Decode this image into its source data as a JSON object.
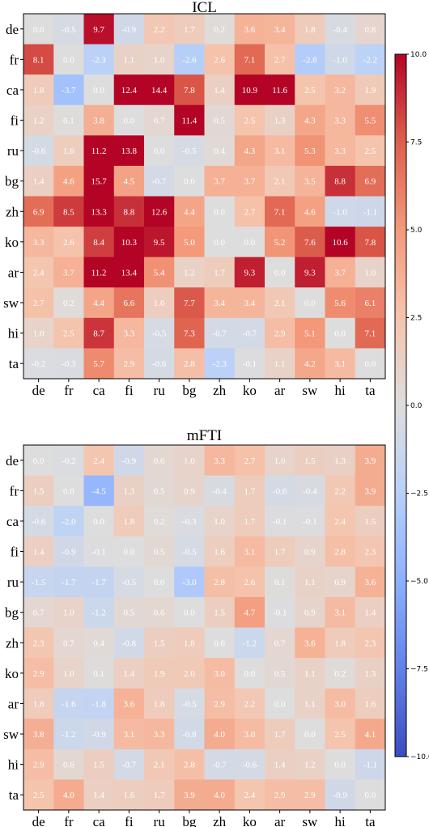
{
  "chart_data": [
    {
      "type": "heatmap",
      "title": "ICL",
      "xlabels": [
        "de",
        "fr",
        "ca",
        "fi",
        "ru",
        "bg",
        "zh",
        "ko",
        "ar",
        "sw",
        "hi",
        "ta"
      ],
      "ylabels": [
        "de",
        "fr",
        "ca",
        "fi",
        "ru",
        "bg",
        "zh",
        "ko",
        "ar",
        "sw",
        "hi",
        "ta"
      ],
      "values": [
        [
          0.0,
          -0.5,
          9.7,
          -0.9,
          2.2,
          1.7,
          0.2,
          3.6,
          3.4,
          1.8,
          -0.4,
          0.8
        ],
        [
          8.1,
          0.0,
          -2.3,
          1.1,
          1.0,
          -2.6,
          2.6,
          7.1,
          2.7,
          -2.8,
          -1.0,
          -2.2
        ],
        [
          1.8,
          -3.7,
          0.0,
          12.4,
          14.4,
          7.8,
          1.4,
          10.9,
          11.6,
          2.5,
          3.2,
          1.9
        ],
        [
          1.2,
          0.1,
          3.8,
          0.0,
          0.7,
          11.4,
          0.5,
          2.5,
          1.3,
          4.3,
          3.3,
          5.5
        ],
        [
          -0.6,
          1.6,
          11.2,
          13.8,
          0.0,
          -0.5,
          0.4,
          4.3,
          3.1,
          5.3,
          3.3,
          2.5
        ],
        [
          1.4,
          4.6,
          15.7,
          4.5,
          -0.7,
          0.0,
          3.7,
          3.7,
          2.1,
          3.5,
          8.8,
          6.9
        ],
        [
          6.9,
          8.5,
          13.3,
          8.8,
          12.6,
          4.4,
          0.0,
          2.7,
          7.1,
          4.6,
          -1.0,
          -1.1
        ],
        [
          3.3,
          2.6,
          8.4,
          10.3,
          9.5,
          5.0,
          -0.0,
          0.0,
          5.2,
          7.6,
          10.6,
          7.8
        ],
        [
          2.4,
          3.7,
          11.2,
          13.4,
          5.4,
          1.2,
          1.7,
          9.3,
          0.0,
          9.3,
          3.7,
          1.0
        ],
        [
          2.7,
          0.2,
          4.4,
          6.6,
          1.6,
          7.7,
          3.4,
          3.4,
          2.1,
          0.0,
          5.6,
          6.1
        ],
        [
          1.0,
          2.5,
          8.7,
          3.3,
          -0.5,
          7.3,
          -0.7,
          -0.7,
          2.9,
          5.1,
          0.0,
          7.1
        ],
        [
          -0.2,
          -0.3,
          5.7,
          2.9,
          -0.6,
          2.8,
          -2.3,
          -0.1,
          1.1,
          4.2,
          3.1,
          0.0
        ]
      ]
    },
    {
      "type": "heatmap",
      "title": "mFTI",
      "xlabels": [
        "de",
        "fr",
        "ca",
        "fi",
        "ru",
        "bg",
        "zh",
        "ko",
        "ar",
        "sw",
        "hi",
        "ta"
      ],
      "ylabels": [
        "de",
        "fr",
        "ca",
        "fi",
        "ru",
        "bg",
        "zh",
        "ko",
        "ar",
        "sw",
        "hi",
        "ta"
      ],
      "values": [
        [
          0.0,
          -0.2,
          2.4,
          -0.9,
          0.6,
          1.0,
          3.3,
          2.7,
          1.0,
          1.5,
          1.3,
          3.9
        ],
        [
          1.5,
          0.0,
          -4.5,
          1.3,
          0.5,
          0.9,
          -0.4,
          1.7,
          -0.6,
          -0.4,
          2.2,
          3.9
        ],
        [
          -0.6,
          -2.0,
          0.0,
          1.8,
          0.2,
          -0.3,
          1.0,
          1.7,
          -0.1,
          -0.1,
          2.4,
          1.5
        ],
        [
          1.4,
          -0.9,
          -0.1,
          0.0,
          0.5,
          -0.5,
          1.6,
          3.1,
          1.7,
          0.9,
          2.8,
          2.3
        ],
        [
          -1.5,
          -1.7,
          -1.7,
          -0.5,
          0.0,
          -3.0,
          2.8,
          2.6,
          0.1,
          1.1,
          0.9,
          3.6
        ],
        [
          0.7,
          1.0,
          -1.2,
          0.5,
          0.6,
          0.0,
          1.5,
          4.7,
          -0.1,
          0.9,
          3.1,
          1.4
        ],
        [
          2.3,
          0.7,
          0.4,
          -0.8,
          1.5,
          1.8,
          0.0,
          -1.2,
          0.7,
          3.6,
          1.8,
          2.3
        ],
        [
          2.9,
          1.0,
          0.1,
          1.4,
          1.9,
          2.0,
          3.0,
          0.0,
          0.5,
          1.1,
          0.2,
          1.3
        ],
        [
          1.8,
          -1.6,
          -1.8,
          3.6,
          1.8,
          -0.5,
          2.9,
          2.2,
          0.0,
          1.1,
          3.0,
          1.6
        ],
        [
          3.8,
          -1.2,
          -0.9,
          3.1,
          3.3,
          -0.8,
          4.0,
          3.0,
          1.7,
          0.0,
          2.5,
          4.1
        ],
        [
          2.9,
          0.6,
          1.5,
          -0.7,
          2.1,
          2.8,
          -0.7,
          -0.6,
          1.4,
          1.2,
          0.0,
          -1.1
        ],
        [
          2.5,
          4.0,
          1.4,
          1.6,
          1.7,
          3.9,
          4.0,
          2.4,
          2.9,
          2.9,
          -0.9,
          0.0
        ]
      ]
    }
  ],
  "colorbar": {
    "colormap": "coolwarm",
    "vmin": -10.0,
    "vmax": 10.0,
    "ticks": [
      "10.0",
      "7.5",
      "5.0",
      "2.5",
      "0.0",
      "−2.5",
      "−5.0",
      "−7.5",
      "−10.0"
    ],
    "tick_values": [
      10.0,
      7.5,
      5.0,
      2.5,
      0.0,
      -2.5,
      -5.0,
      -7.5,
      -10.0
    ]
  }
}
